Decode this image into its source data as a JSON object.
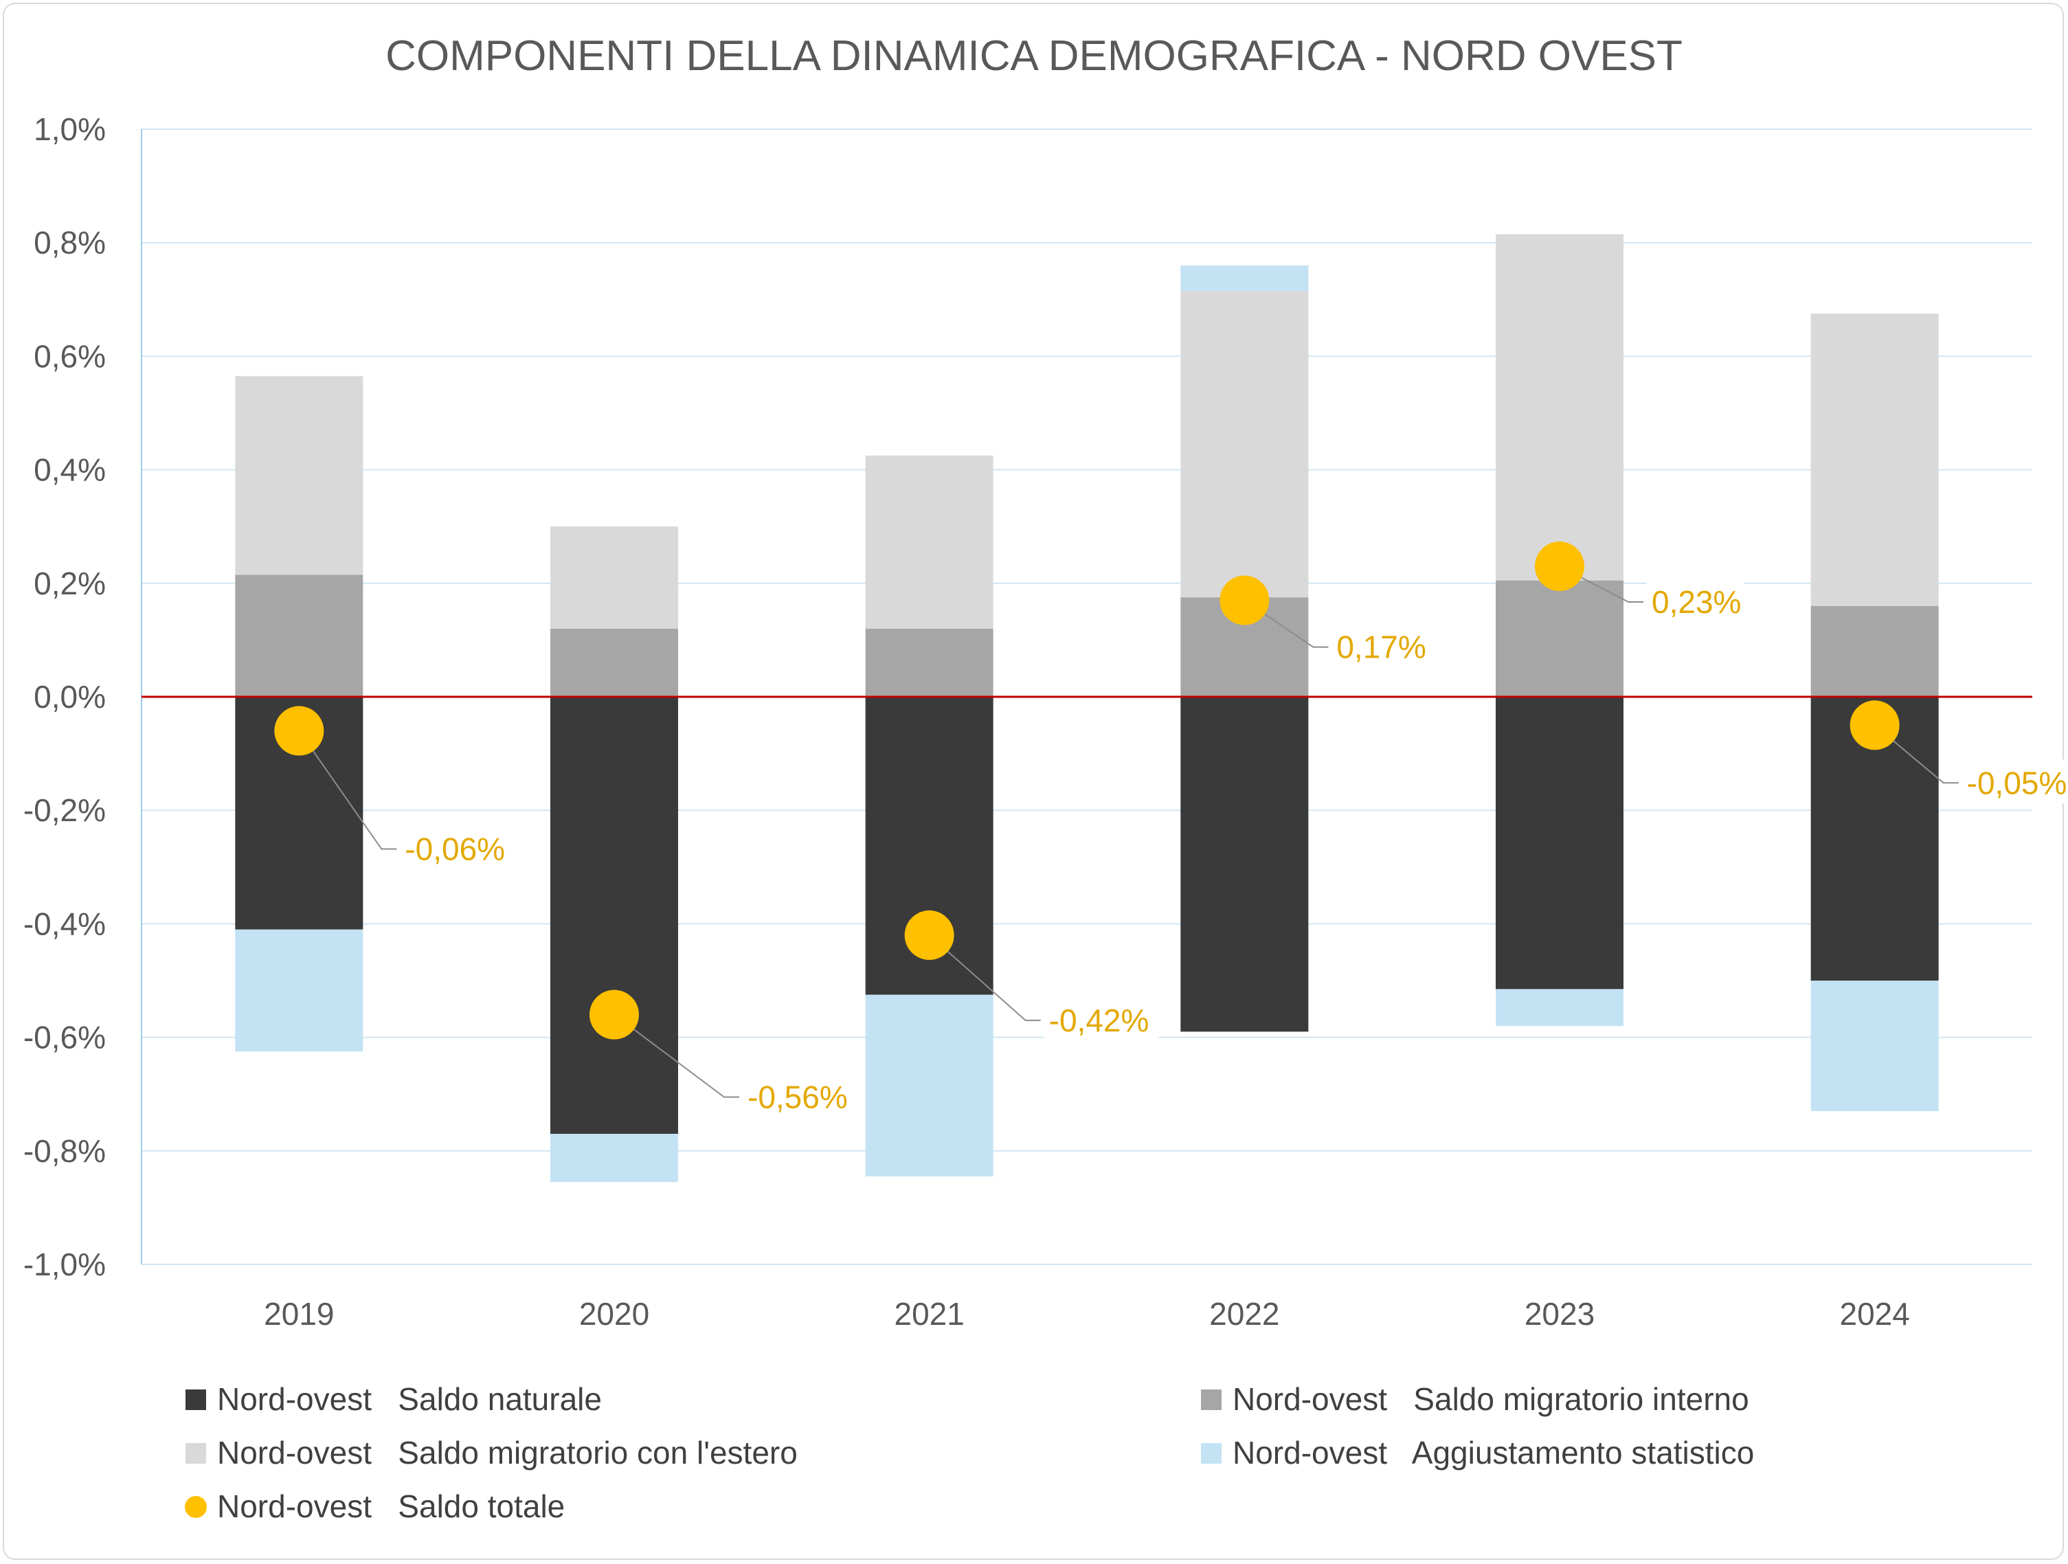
{
  "chart_data": {
    "type": "bar",
    "stacked": true,
    "title": "COMPONENTI DELLA DINAMICA DEMOGRAFICA - NORD OVEST",
    "categories": [
      "2019",
      "2020",
      "2021",
      "2022",
      "2023",
      "2024"
    ],
    "ylim": [
      -1.0,
      1.0
    ],
    "yticks": [
      1.0,
      0.8,
      0.6,
      0.4,
      0.2,
      0.0,
      -0.2,
      -0.4,
      -0.6,
      -0.8,
      -1.0
    ],
    "ytick_labels": [
      "1,0%",
      "0,8%",
      "0,6%",
      "0,4%",
      "0,2%",
      "0,0%",
      "-0,2%",
      "-0,4%",
      "-0,6%",
      "-0,8%",
      "-1,0%"
    ],
    "grid": true,
    "legend_position": "bottom",
    "series": [
      {
        "name": "Nord-ovest   Saldo naturale",
        "kind": "bar",
        "color": "#3a3a3a",
        "values": [
          -0.41,
          -0.77,
          -0.525,
          -0.59,
          -0.515,
          -0.5
        ]
      },
      {
        "name": "Nord-ovest   Saldo migratorio interno",
        "kind": "bar",
        "color": "#a6a6a6",
        "values": [
          0.215,
          0.12,
          0.12,
          0.175,
          0.205,
          0.16
        ]
      },
      {
        "name": "Nord-ovest   Saldo migratorio con l'estero",
        "kind": "bar",
        "color": "#d9d9d9",
        "values": [
          0.35,
          0.18,
          0.305,
          0.54,
          0.61,
          0.515
        ]
      },
      {
        "name": "Nord-ovest   Aggiustamento statistico",
        "kind": "bar",
        "color": "#c3e3f4",
        "values": [
          -0.215,
          -0.085,
          -0.32,
          0.045,
          -0.065,
          -0.23
        ]
      },
      {
        "name": "Nord-ovest   Saldo totale",
        "kind": "marker",
        "color": "#ffc000",
        "values": [
          -0.06,
          -0.56,
          -0.42,
          0.17,
          0.23,
          -0.05
        ],
        "labels": [
          "-0,06%",
          "-0,56%",
          "-0,42%",
          "0,17%",
          "0,23%",
          "-0,05%"
        ]
      }
    ]
  }
}
